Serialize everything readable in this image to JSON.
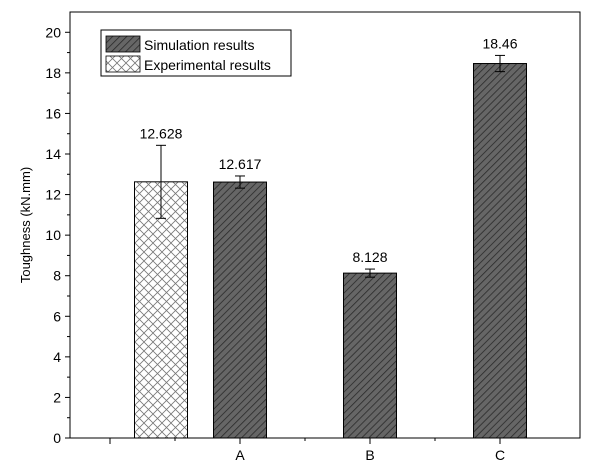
{
  "chart_data": {
    "type": "bar",
    "title": "",
    "xlabel": "",
    "ylabel": "Toughness (kN.mm)",
    "ylim": [
      0,
      21
    ],
    "yticks": [
      0,
      2,
      4,
      6,
      8,
      10,
      12,
      14,
      16,
      18,
      20
    ],
    "grid": false,
    "legend_position": "top-left",
    "series": [
      {
        "name": "Simulation results",
        "pattern": "diagonal-hatch",
        "color": "#555555"
      },
      {
        "name": "Experimental results",
        "pattern": "crosshatch",
        "color": "#ffffff"
      }
    ],
    "bars": [
      {
        "category": "",
        "series": "Experimental results",
        "value": 12.628,
        "label": "12.628",
        "error": 1.8
      },
      {
        "category": "A",
        "series": "Simulation results",
        "value": 12.617,
        "label": "12.617",
        "error": 0.3
      },
      {
        "category": "B",
        "series": "Simulation results",
        "value": 8.128,
        "label": "8.128",
        "error": 0.2
      },
      {
        "category": "C",
        "series": "Simulation results",
        "value": 18.46,
        "label": "18.46",
        "error": 0.4
      }
    ]
  }
}
